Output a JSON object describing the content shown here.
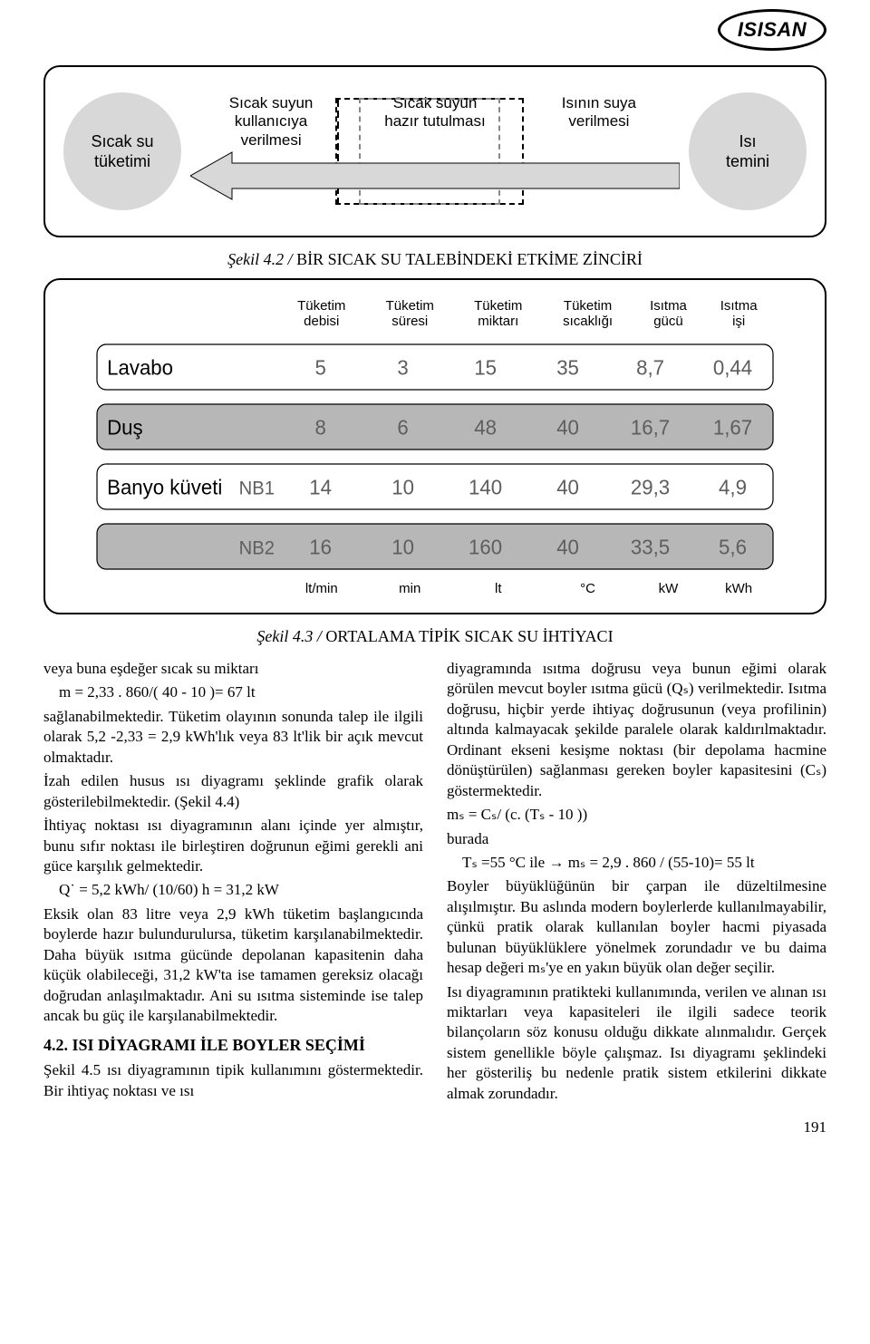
{
  "logo": {
    "text": "ISISAN"
  },
  "page_number": "191",
  "diagram": {
    "left_node": "Sıcak su\ntüketimi",
    "right_node": "Isı\ntemini",
    "mid_labels": [
      "Sıcak suyun\nkullanıcıya\nverilmesi",
      "Sıcak suyun\nhazır tutulması",
      "Isının suya\nverilmesi"
    ],
    "node_bg": "#d8d8d8",
    "arrow_fill": "#d8d8d8",
    "caption_prefix": "Şekil 4.2 / ",
    "caption_text": "BİR SICAK SU TALEBİNDEKİ ETKİME ZİNCİRİ"
  },
  "table": {
    "columns": [
      "Tüketim\ndebisi",
      "Tüketim\nsüresi",
      "Tüketim\nmiktarı",
      "Tüketim\nsıcaklığı",
      "Isıtma\ngücü",
      "Isıtma\nişi"
    ],
    "rows": [
      {
        "label": "Lavabo",
        "sub": "",
        "cells": [
          "5",
          "3",
          "15",
          "35",
          "8,7",
          "0,44"
        ],
        "bg": "#ffffff"
      },
      {
        "label": "Duş",
        "sub": "",
        "cells": [
          "8",
          "6",
          "48",
          "40",
          "16,7",
          "1,67"
        ],
        "bg": "#b7b7b7"
      },
      {
        "label": "Banyo küveti",
        "sub": "NB1",
        "cells": [
          "14",
          "10",
          "140",
          "40",
          "29,3",
          "4,9"
        ],
        "bg": "#ffffff"
      },
      {
        "label": "",
        "sub": "NB2",
        "cells": [
          "16",
          "10",
          "160",
          "40",
          "33,5",
          "5,6"
        ],
        "bg": "#b7b7b7"
      }
    ],
    "units": [
      "lt/min",
      "min",
      "lt",
      "°C",
      "kW",
      "kWh"
    ],
    "caption_prefix": "Şekil 4.3 / ",
    "caption_text": "ORTALAMA TİPİK SICAK SU İHTİYACI",
    "value_color": "#5e5e5e",
    "label_color": "#000000"
  },
  "body": {
    "left": [
      "veya buna eşdeğer sıcak su miktarı",
      " m = 2,33 . 860/( 40 - 10 )= 67 lt",
      "sağlanabilmektedir. Tüketim olayının sonunda talep ile ilgili olarak 5,2 -2,33 = 2,9 kWh'lık veya 83 lt'lik bir açık mevcut olmaktadır.",
      "İzah edilen husus ısı diyagramı şeklinde grafik olarak gösterilebilmektedir. (Şekil 4.4)",
      "İhtiyaç noktası ısı diyagramının alanı içinde yer almıştır, bunu sıfır noktası ile birleştiren doğrunun eğimi gerekli ani güce karşılık gelmektedir.",
      " Q˙ = 5,2 kWh/ (10/60) h  = 31,2 kW",
      "Eksik olan 83 litre veya 2,9 kWh tüketim başlangıcında boylerde hazır bulundurulursa, tüketim karşılanabilmektedir. Daha büyük ısıtma gücünde depolanan kapasitenin daha küçük olabileceği, 31,2 kW'ta ise tamamen gereksiz olacağı doğrudan anlaşılmaktadır. Ani su ısıtma sisteminde ise talep ancak bu güç ile karşılanabilmektedir."
    ],
    "left_h3": "4.2. ISI DİYAGRAMI İLE BOYLER SEÇİMİ",
    "left_after_h3": "Şekil 4.5 ısı diyagramının tipik kullanımını göstermektedir. Bir ihtiyaç noktası ve ısı",
    "right": [
      "diyagramında ısıtma doğrusu veya bunun eğimi olarak görülen mevcut boyler ısıtma gücü (Qₛ) verilmektedir. Isıtma doğrusu, hiçbir yerde ihtiyaç doğrusunun (veya profilinin) altında kalmayacak şekilde paralele olarak kaldırılmaktadır. Ordinant ekseni kesişme noktası (bir depolama hacmine dönüştürülen) sağlanması gereken boyler kapasitesini (Cₛ) göstermektedir.",
      "mₛ = Cₛ/ (c. (Tₛ - 10 ))",
      "burada",
      " Tₛ =55 °C ile → mₛ = 2,9 . 860 / (55-10)= 55 lt",
      "Boyler büyüklüğünün bir çarpan ile düzeltilmesine alışılmıştır. Bu aslında modern boylerlerde kullanılmayabilir, çünkü pratik olarak kullanılan boyler hacmi piyasada bulunan büyüklüklere yönelmek zorundadır ve bu daima hesap değeri mₛ'ye en yakın büyük olan değer seçilir.",
      "Isı diyagramının pratikteki kullanımında, verilen ve alınan ısı miktarları veya kapasiteleri ile ilgili sadece teorik bilançoların söz konusu olduğu dikkate alınmalıdır. Gerçek sistem genellikle böyle çalışmaz. Isı diyagramı şeklindeki her gösteriliş bu nedenle pratik sistem etkilerini dikkate almak zorundadır."
    ]
  }
}
